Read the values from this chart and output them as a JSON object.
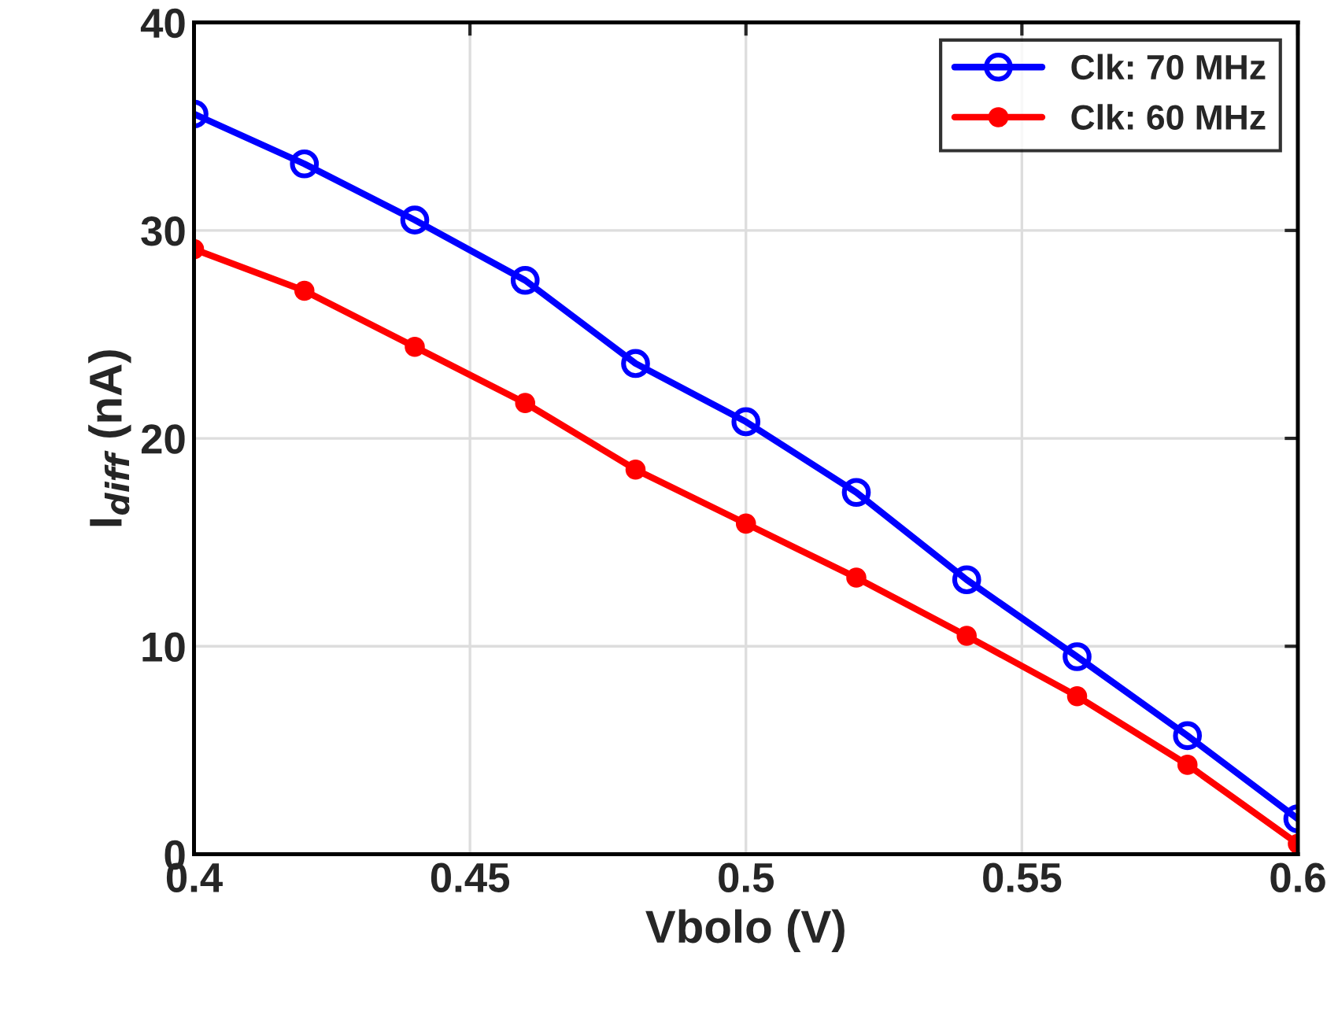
{
  "chart_data": {
    "type": "line",
    "xlabel": "Vbolo (V)",
    "ylabel": "I$_{diff}$ (nA)",
    "x": [
      0.4,
      0.42,
      0.44,
      0.46,
      0.48,
      0.5,
      0.52,
      0.54,
      0.56,
      0.58,
      0.6
    ],
    "series": [
      {
        "name": "Clk: 70 MHz",
        "color": "#0000ff",
        "marker": "circle",
        "values": [
          35.6,
          33.2,
          30.5,
          27.6,
          23.6,
          20.8,
          17.4,
          13.2,
          9.5,
          5.7,
          1.7
        ]
      },
      {
        "name": "Clk: 60 MHz",
        "color": "#ff0000",
        "marker": "dot",
        "values": [
          29.1,
          27.1,
          24.4,
          21.7,
          18.5,
          15.9,
          13.3,
          10.5,
          7.6,
          4.3,
          0.5
        ]
      }
    ],
    "xlim": [
      0.4,
      0.6
    ],
    "xticks": [
      0.4,
      0.45,
      0.5,
      0.55,
      0.6
    ],
    "ylim": [
      0,
      40
    ],
    "yticks": [
      0,
      10,
      20,
      30,
      40
    ],
    "grid": true,
    "legend": "top right",
    "line_style": "solid"
  }
}
